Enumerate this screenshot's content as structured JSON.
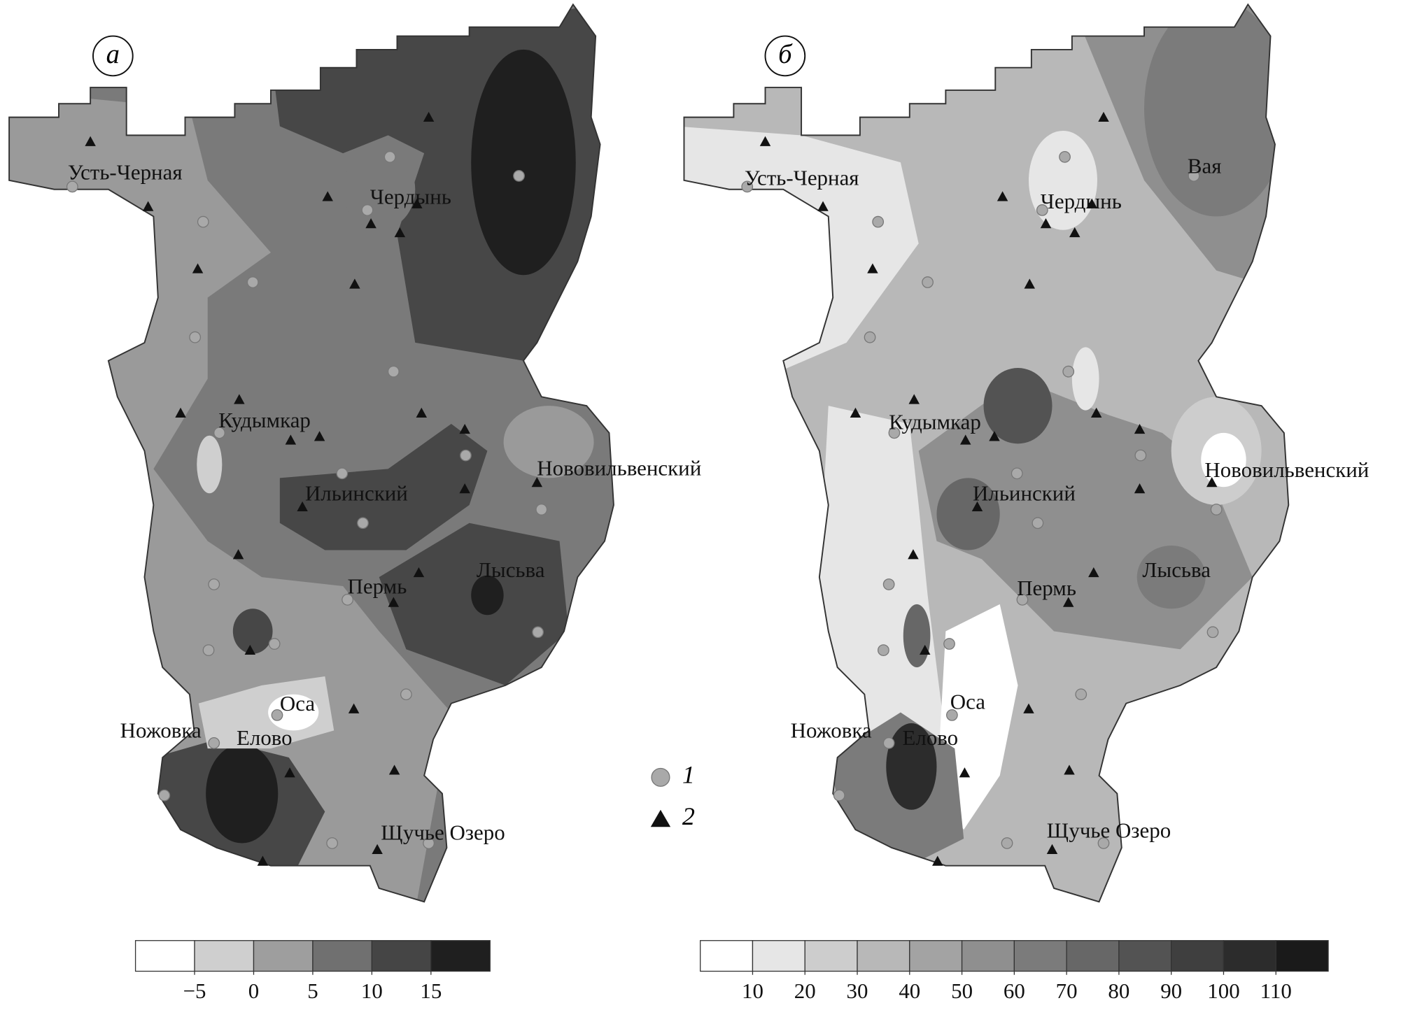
{
  "panels": [
    {
      "label": "а",
      "cities": [
        "Усть-Черная",
        "Чердынь",
        "Кудымкар",
        "Нововильвенский",
        "Ильинский",
        "Лысьва",
        "Пермь",
        "Оса",
        "Ножовка",
        "Елово",
        "Щучье Озеро"
      ],
      "colorbar": {
        "colors": [
          "#ffffff",
          "#cfcfcf",
          "#9e9e9e",
          "#707070",
          "#454545",
          "#1f1f1f"
        ],
        "ticks": [
          {
            "value": -5,
            "label": "−5"
          },
          0,
          5,
          10,
          15
        ]
      }
    },
    {
      "label": "б",
      "cities": [
        "Усть-Черная",
        "Чердынь",
        "Вая",
        "Кудымкар",
        "Нововильвенский",
        "Ильинский",
        "Лысьва",
        "Пермь",
        "Оса",
        "Ножовка",
        "Елово",
        "Щучье Озеро"
      ],
      "colorbar": {
        "colors": [
          "#ffffff",
          "#e6e6e6",
          "#cdcdcd",
          "#b8b8b8",
          "#a3a3a3",
          "#8f8f8f",
          "#7b7b7b",
          "#676767",
          "#535353",
          "#3f3f3f",
          "#2c2c2c",
          "#1a1a1a"
        ],
        "ticks": [
          10,
          20,
          30,
          40,
          50,
          60,
          70,
          80,
          90,
          100,
          110
        ]
      }
    }
  ],
  "legend": [
    {
      "label": "1",
      "symbol": "circle"
    },
    {
      "label": "2",
      "symbol": "triangle"
    }
  ]
}
